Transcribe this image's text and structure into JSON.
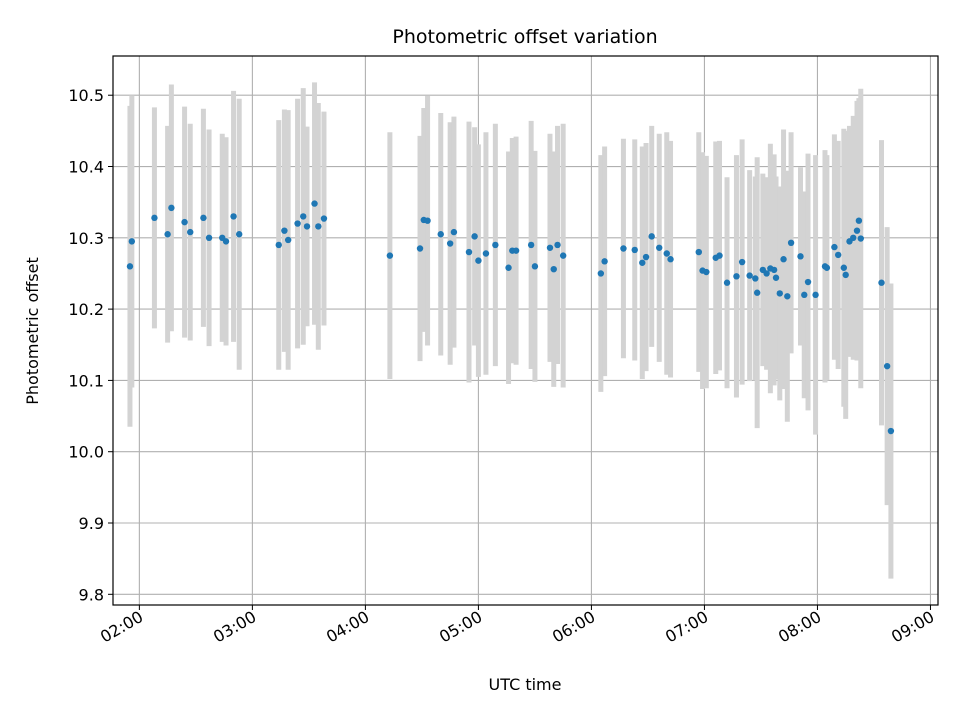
{
  "chart_data": {
    "type": "scatter",
    "title": "Photometric offset variation",
    "xlabel": "UTC time",
    "ylabel": "Photometric offset",
    "grid": true,
    "xlim": [
      "01:46",
      "09:04"
    ],
    "ylim": [
      9.785,
      10.555
    ],
    "x_ticks": [
      "02:00",
      "03:00",
      "04:00",
      "05:00",
      "06:00",
      "07:00",
      "08:00",
      "09:00"
    ],
    "y_ticks": [
      "9.8",
      "9.9",
      "10.0",
      "10.1",
      "10.2",
      "10.3",
      "10.4",
      "10.5"
    ],
    "colors": {
      "points": "#1f77b4",
      "errorbars": "#d3d3d3",
      "grid": "#b0b0b0"
    },
    "series": [
      {
        "x": [
          "01:55",
          "01:56",
          "02:08",
          "02:15",
          "02:17",
          "02:24",
          "02:27",
          "02:34",
          "02:37",
          "02:44",
          "02:46",
          "02:50",
          "02:53",
          "03:14",
          "03:17",
          "03:19",
          "03:24",
          "03:27",
          "03:29",
          "03:33",
          "03:35",
          "03:38",
          "04:13",
          "04:29",
          "04:31",
          "04:33",
          "04:40",
          "04:45",
          "04:47",
          "04:55",
          "04:58",
          "05:00",
          "05:04",
          "05:09",
          "05:16",
          "05:18",
          "05:20",
          "05:28",
          "05:30",
          "05:38",
          "05:40",
          "05:42",
          "05:45",
          "06:05",
          "06:07",
          "06:17",
          "06:23",
          "06:27",
          "06:29",
          "06:32",
          "06:36",
          "06:40",
          "06:42",
          "06:57",
          "06:59",
          "07:01",
          "07:06",
          "07:08",
          "07:12",
          "07:17",
          "07:20",
          "07:24",
          "07:27",
          "07:28",
          "07:31",
          "07:33",
          "07:35",
          "07:37",
          "07:38",
          "07:40",
          "07:42",
          "07:44",
          "07:46",
          "07:51",
          "07:53",
          "07:55",
          "07:59",
          "08:04",
          "08:05",
          "08:09",
          "08:11",
          "08:14",
          "08:15",
          "08:17",
          "08:19",
          "08:21",
          "08:22",
          "08:23",
          "08:34",
          "08:37",
          "08:39"
        ],
        "y": [
          10.26,
          10.295,
          10.328,
          10.305,
          10.342,
          10.322,
          10.308,
          10.328,
          10.3,
          10.3,
          10.295,
          10.33,
          10.305,
          10.29,
          10.31,
          10.297,
          10.32,
          10.33,
          10.316,
          10.348,
          10.316,
          10.327,
          10.275,
          10.285,
          10.325,
          10.324,
          10.305,
          10.292,
          10.308,
          10.28,
          10.302,
          10.268,
          10.278,
          10.29,
          10.258,
          10.282,
          10.282,
          10.29,
          10.26,
          10.286,
          10.256,
          10.29,
          10.275,
          10.25,
          10.267,
          10.285,
          10.283,
          10.265,
          10.273,
          10.302,
          10.286,
          10.278,
          10.27,
          10.28,
          10.254,
          10.252,
          10.272,
          10.275,
          10.237,
          10.246,
          10.266,
          10.247,
          10.243,
          10.223,
          10.255,
          10.25,
          10.257,
          10.255,
          10.244,
          10.222,
          10.27,
          10.218,
          10.293,
          10.274,
          10.22,
          10.238,
          10.22,
          10.26,
          10.258,
          10.287,
          10.276,
          10.258,
          10.248,
          10.295,
          10.3,
          10.31,
          10.324,
          10.299,
          10.237,
          10.12,
          10.029
        ],
        "err": [
          0.225,
          0.205,
          0.155,
          0.152,
          0.173,
          0.162,
          0.152,
          0.153,
          0.152,
          0.146,
          0.146,
          0.176,
          0.19,
          0.175,
          0.17,
          0.182,
          0.175,
          0.18,
          0.14,
          0.17,
          0.173,
          0.15,
          0.173,
          0.158,
          0.157,
          0.175,
          0.17,
          0.17,
          0.162,
          0.183,
          0.153,
          0.163,
          0.17,
          0.17,
          0.163,
          0.158,
          0.16,
          0.174,
          0.162,
          0.16,
          0.165,
          0.167,
          0.185,
          0.166,
          0.161,
          0.154,
          0.155,
          0.163,
          0.16,
          0.155,
          0.16,
          0.17,
          0.166,
          0.168,
          0.166,
          0.163,
          0.163,
          0.161,
          0.148,
          0.17,
          0.172,
          0.148,
          0.143,
          0.19,
          0.135,
          0.135,
          0.175,
          0.162,
          0.142,
          0.15,
          0.182,
          0.176,
          0.155,
          0.125,
          0.145,
          0.18,
          0.196,
          0.163,
          0.158,
          0.158,
          0.16,
          0.195,
          0.202,
          0.162,
          0.171,
          0.182,
          0.172,
          0.21,
          0.2,
          0.195,
          0.207
        ]
      }
    ]
  }
}
